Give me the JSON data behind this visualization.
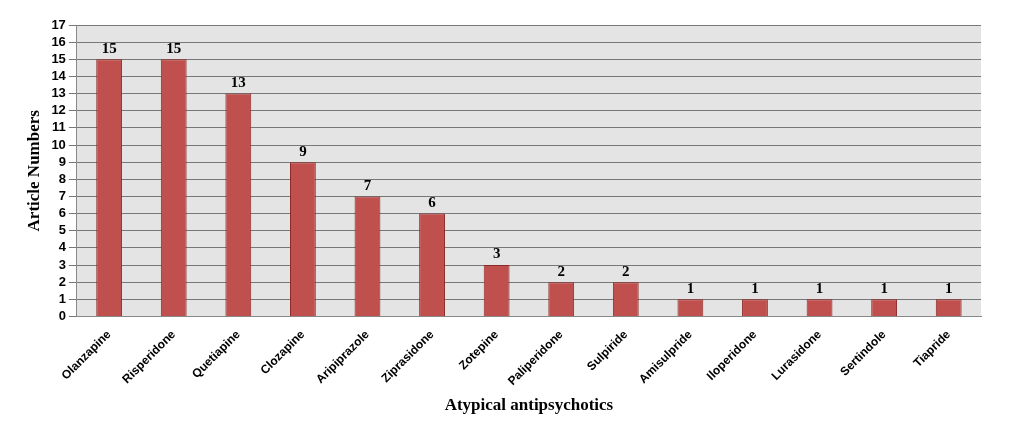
{
  "chart_data": {
    "type": "bar",
    "xlabel": "Atypical antipsychotics",
    "ylabel": "Article Numbers",
    "categories": [
      "Olanzapine",
      "Risperidone",
      "Quetiapine",
      "Clozapine",
      "Aripiprazole",
      "Ziprasidone",
      "Zotepine",
      "Paliperidone",
      "Sulpiride",
      "Amisulpride",
      "Iloperidone",
      "Lurasidone",
      "Sertindole",
      "Tiapride"
    ],
    "values": [
      15,
      15,
      13,
      9,
      7,
      6,
      3,
      2,
      2,
      1,
      1,
      1,
      1,
      1
    ],
    "color": "#c0504d",
    "ylim": [
      0,
      17
    ],
    "yticks": [
      0,
      1,
      2,
      3,
      4,
      5,
      6,
      7,
      8,
      9,
      10,
      11,
      12,
      13,
      14,
      15,
      16,
      17
    ],
    "grid": "y",
    "data_labels": true,
    "legend": false
  }
}
